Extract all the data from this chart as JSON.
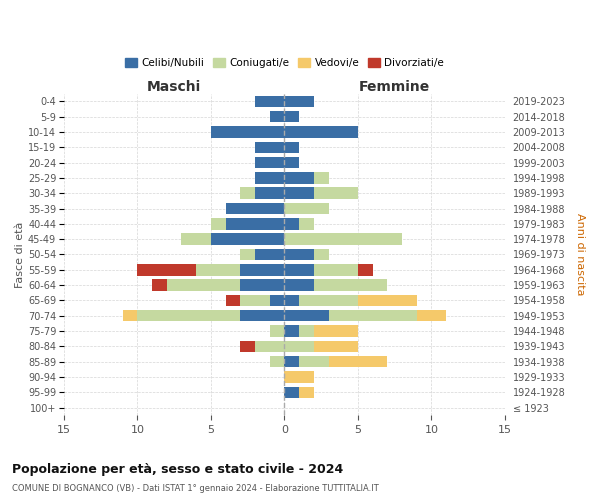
{
  "age_groups": [
    "0-4",
    "5-9",
    "10-14",
    "15-19",
    "20-24",
    "25-29",
    "30-34",
    "35-39",
    "40-44",
    "45-49",
    "50-54",
    "55-59",
    "60-64",
    "65-69",
    "70-74",
    "75-79",
    "80-84",
    "85-89",
    "90-94",
    "95-99",
    "100+"
  ],
  "birth_years": [
    "2019-2023",
    "2014-2018",
    "2009-2013",
    "2004-2008",
    "1999-2003",
    "1994-1998",
    "1989-1993",
    "1984-1988",
    "1979-1983",
    "1974-1978",
    "1969-1973",
    "1964-1968",
    "1959-1963",
    "1954-1958",
    "1949-1953",
    "1944-1948",
    "1939-1943",
    "1934-1938",
    "1929-1933",
    "1924-1928",
    "≤ 1923"
  ],
  "maschi": {
    "celibi": [
      2,
      1,
      5,
      2,
      2,
      2,
      2,
      4,
      4,
      5,
      2,
      3,
      3,
      1,
      3,
      0,
      0,
      0,
      0,
      0,
      0
    ],
    "coniugati": [
      0,
      0,
      0,
      0,
      0,
      0,
      1,
      0,
      1,
      2,
      1,
      3,
      5,
      2,
      7,
      1,
      2,
      1,
      0,
      0,
      0
    ],
    "vedovi": [
      0,
      0,
      0,
      0,
      0,
      0,
      0,
      0,
      0,
      0,
      0,
      0,
      0,
      0,
      1,
      0,
      0,
      0,
      0,
      0,
      0
    ],
    "divorziati": [
      0,
      0,
      0,
      0,
      0,
      0,
      0,
      0,
      0,
      0,
      0,
      4,
      1,
      1,
      0,
      0,
      1,
      0,
      0,
      0,
      0
    ]
  },
  "femmine": {
    "nubili": [
      2,
      1,
      5,
      1,
      1,
      2,
      2,
      0,
      1,
      0,
      2,
      2,
      2,
      1,
      3,
      1,
      0,
      1,
      0,
      1,
      0
    ],
    "coniugate": [
      0,
      0,
      0,
      0,
      0,
      1,
      3,
      3,
      1,
      8,
      1,
      3,
      5,
      4,
      6,
      1,
      2,
      2,
      0,
      0,
      0
    ],
    "vedove": [
      0,
      0,
      0,
      0,
      0,
      0,
      0,
      0,
      0,
      0,
      0,
      0,
      0,
      4,
      2,
      3,
      3,
      4,
      2,
      1,
      0
    ],
    "divorziate": [
      0,
      0,
      0,
      0,
      0,
      0,
      0,
      0,
      0,
      0,
      0,
      1,
      0,
      0,
      0,
      0,
      0,
      0,
      0,
      0,
      0
    ]
  },
  "colors": {
    "celibi_nubili": "#3a6ea5",
    "coniugati": "#c5d9a0",
    "vedovi": "#f5c96a",
    "divorziati": "#c0392b"
  },
  "xlim": 15,
  "title": "Popolazione per età, sesso e stato civile - 2024",
  "subtitle": "COMUNE DI BOGNANCO (VB) - Dati ISTAT 1° gennaio 2024 - Elaborazione TUTTITALIA.IT",
  "xlabel_left": "Maschi",
  "xlabel_right": "Femmine",
  "ylabel_left": "Fasce di età",
  "ylabel_right": "Anni di nascita",
  "legend_labels": [
    "Celibi/Nubili",
    "Coniugati/e",
    "Vedovi/e",
    "Divorziati/e"
  ]
}
